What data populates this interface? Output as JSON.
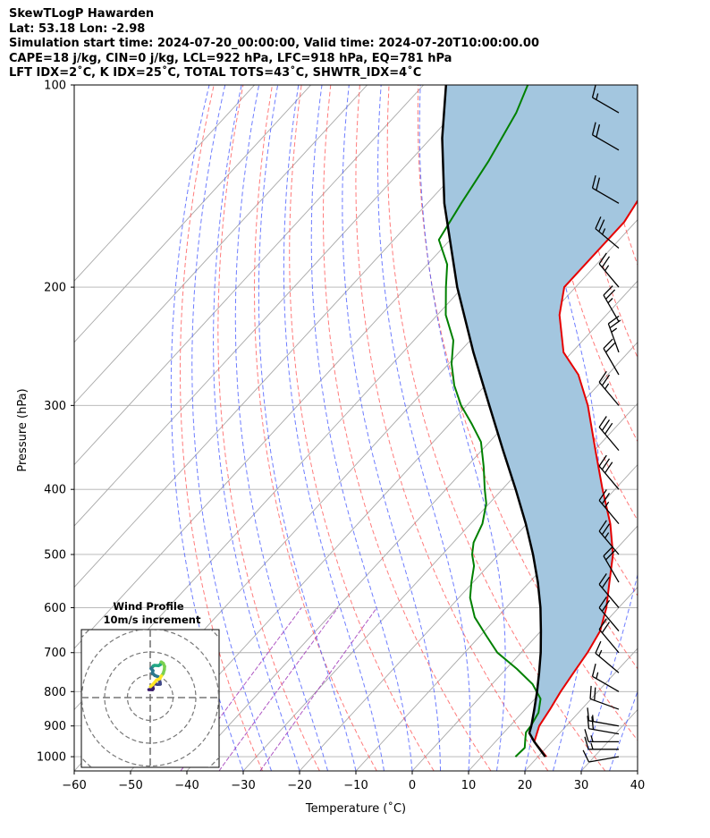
{
  "header": {
    "line1": "SkewTLogP Hawarden",
    "line2": "Lat: 53.18   Lon: -2.98",
    "line3": "Simulation start time: 2024-07-20_00:00:00, Valid time: 2024-07-20T10:00:00.00",
    "line4": "CAPE=18 j/kg, CIN=0 j/kg, LCL=922 hPa, LFC=918 hPa, EQ=781 hPa",
    "line5": "LFT IDX=2˚C, K IDX=25˚C, TOTAL TOTS=43˚C, SHWTR_IDX=4˚C"
  },
  "chart_data": [
    {
      "type": "skew-t",
      "xlabel": "Temperature (˚C)",
      "ylabel": "Pressure (hPa)",
      "xlim": [
        -60,
        40
      ],
      "ylim": [
        1050,
        100
      ],
      "x_ticks": [
        "−60",
        "−50",
        "−40",
        "−30",
        "−20",
        "−10",
        "0",
        "10",
        "20",
        "30",
        "40"
      ],
      "y_ticks": [
        "100",
        "200",
        "300",
        "400",
        "500",
        "600",
        "700",
        "800",
        "900",
        "1000"
      ],
      "y_tick_values": [
        100,
        200,
        300,
        400,
        500,
        600,
        700,
        800,
        900,
        1000
      ],
      "grid": true,
      "colors": {
        "temperature": "#e60000",
        "dewpoint": "#008000",
        "parcel": "#000000",
        "cape_fill": "#a3c6df",
        "dry_adiabat": "#ff5a5a",
        "moist_adiabat": "#4a5cff",
        "mixing_ratio": "#9b30b5",
        "isotherm": "#a8a8a8",
        "barb": "#000000"
      },
      "series": [
        {
          "name": "",
          "role": "temperature",
          "pressure": [
            1000,
            950,
            900,
            850,
            800,
            750,
            700,
            650,
            600,
            550,
            500,
            450,
            400,
            350,
            300,
            270,
            250,
            220,
            200,
            180,
            160,
            140,
            120,
            110,
            100
          ],
          "temperature": [
            21.5,
            16.9,
            15.2,
            14.4,
            13.4,
            12.6,
            11.8,
            10.5,
            7.8,
            4.2,
            0.3,
            -5.2,
            -12.2,
            -19.8,
            -28.5,
            -35.2,
            -41.5,
            -48.3,
            -52.0,
            -52.0,
            -52.0,
            -54.0,
            -56.5,
            -57.5,
            -57.5
          ]
        },
        {
          "name": "",
          "role": "dewpoint",
          "pressure": [
            1000,
            970,
            940,
            920,
            900,
            860,
            820,
            780,
            740,
            700,
            660,
            620,
            580,
            550,
            520,
            500,
            480,
            450,
            420,
            400,
            370,
            340,
            320,
            300,
            280,
            260,
            240,
            220,
            200,
            185,
            170,
            150,
            130,
            110,
            100
          ],
          "temperature": [
            16.0,
            16.2,
            14.8,
            13.9,
            13.7,
            12.9,
            11.0,
            7.2,
            1.9,
            -4.2,
            -9.0,
            -14.0,
            -18.0,
            -20.3,
            -22.5,
            -24.7,
            -26.4,
            -27.9,
            -30.5,
            -33.1,
            -37.0,
            -41.5,
            -46.0,
            -51.0,
            -55.5,
            -59.5,
            -63.0,
            -68.5,
            -73.0,
            -76.5,
            -82.0,
            -84.0,
            -86.0,
            -89.0,
            -91.5
          ]
        },
        {
          "name": "",
          "role": "parcel",
          "pressure": [
            1000,
            950,
            922,
            900,
            850,
            800,
            750,
            700,
            650,
            600,
            550,
            500,
            450,
            400,
            350,
            300,
            250,
            200,
            150,
            120,
            100
          ],
          "temperature": [
            21.3,
            16.9,
            14.6,
            13.8,
            11.6,
            9.2,
            6.5,
            3.5,
            0.0,
            -3.9,
            -8.5,
            -13.9,
            -20.2,
            -27.6,
            -36.2,
            -46.0,
            -57.5,
            -71.0,
            -87.0,
            -98.0,
            -106.0
          ]
        }
      ],
      "wind_barbs": {
        "pressure": [
          1000,
          975,
          950,
          925,
          900,
          850,
          800,
          750,
          700,
          650,
          600,
          550,
          500,
          450,
          400,
          350,
          300,
          270,
          250,
          225,
          200,
          175,
          150,
          125,
          110
        ],
        "speed_kt": [
          10,
          15,
          15,
          20,
          15,
          20,
          15,
          15,
          20,
          20,
          20,
          20,
          25,
          25,
          30,
          30,
          25,
          20,
          25,
          25,
          25,
          25,
          20,
          20,
          15
        ],
        "direction_deg": [
          260,
          270,
          270,
          280,
          280,
          290,
          300,
          310,
          320,
          320,
          320,
          330,
          320,
          320,
          320,
          320,
          320,
          330,
          340,
          330,
          320,
          310,
          300,
          300,
          300
        ]
      }
    },
    {
      "type": "hodograph",
      "title": "Wind Profile",
      "subtitle": "10m/s increment",
      "ring_step_ms": 10,
      "colormap": [
        "#3b1c6b",
        "#3f4788",
        "#2a788e",
        "#22a884",
        "#7ad151",
        "#fde725"
      ],
      "path": {
        "u": [
          -0.6,
          1.0,
          1.3,
          1.0,
          1.6,
          3.2,
          4.4,
          4.3,
          3.9,
          4.1,
          3.5,
          2.0,
          0.9,
          1.2,
          0.4,
          1.4,
          1.9,
          3.6,
          4.5,
          4.7,
          4.8,
          5.7,
          6.3,
          6.2,
          5.7,
          4.9,
          4.2,
          2.7,
          1.2,
          0.1
        ],
        "v": [
          3.5,
          3.5,
          3.9,
          5.3,
          6.1,
          5.8,
          5.9,
          6.8,
          7.4,
          7.8,
          9.1,
          9.7,
          10.8,
          11.8,
          12.7,
          13.9,
          14.1,
          14.0,
          14.5,
          15.1,
          15.6,
          15.0,
          13.7,
          12.3,
          10.6,
          9.5,
          8.3,
          7.6,
          5.8,
          4.8
        ]
      }
    }
  ]
}
